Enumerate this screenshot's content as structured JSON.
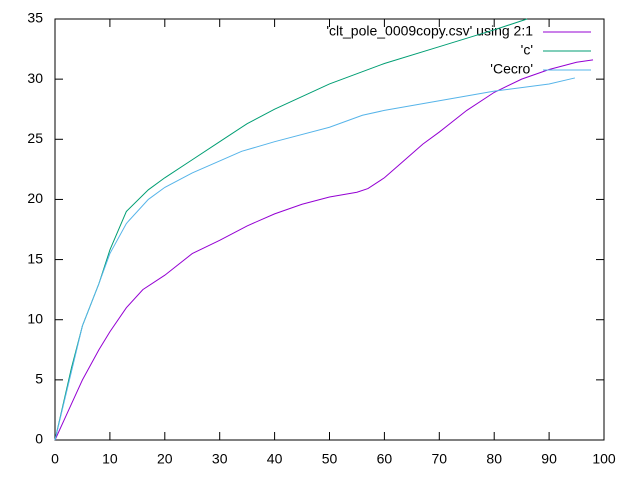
{
  "chart_data": {
    "type": "line",
    "xlim": [
      0,
      100
    ],
    "xticks": [
      0,
      10,
      20,
      30,
      40,
      50,
      60,
      70,
      80,
      90,
      100
    ],
    "ylim": [
      0,
      35
    ],
    "yticks": [
      0,
      5,
      10,
      15,
      20,
      25,
      30,
      35
    ],
    "legend": "top-right",
    "grid": false,
    "series": [
      {
        "name": "'clt_pole_0009copy.csv' using 2:1",
        "color": "#9400d3",
        "x": [
          0,
          2,
          5,
          8,
          10,
          13,
          16,
          20,
          25,
          30,
          35,
          40,
          45,
          50,
          55,
          57,
          60,
          63,
          67,
          70,
          75,
          80,
          85,
          90,
          95,
          98
        ],
        "values": [
          0,
          2,
          5,
          7.5,
          9,
          11,
          12.5,
          13.7,
          15.5,
          16.6,
          17.8,
          18.8,
          19.6,
          20.2,
          20.6,
          20.9,
          21.8,
          23,
          24.6,
          25.6,
          27.4,
          28.9,
          30,
          30.8,
          31.4,
          31.6
        ]
      },
      {
        "name": "'c'",
        "color": "#009e73",
        "x": [
          0,
          3,
          5,
          8,
          10,
          13,
          17,
          20,
          25,
          30,
          35,
          40,
          50,
          60,
          70,
          80,
          86
        ],
        "values": [
          0,
          6,
          9.5,
          13,
          15.8,
          19,
          20.8,
          21.8,
          23.3,
          24.8,
          26.3,
          27.5,
          29.6,
          31.3,
          32.7,
          34.1,
          35
        ]
      },
      {
        "name": "'Cecro'",
        "color": "#56b4e9",
        "x": [
          0,
          5,
          8,
          10,
          13,
          17,
          20,
          25,
          30,
          34,
          40,
          50,
          56,
          60,
          70,
          80,
          90,
          94.7
        ],
        "values": [
          0,
          9.5,
          13,
          15.5,
          18,
          20,
          21,
          22.2,
          23.2,
          24,
          24.8,
          26,
          27,
          27.4,
          28.2,
          29,
          29.6,
          30.1
        ]
      }
    ]
  }
}
